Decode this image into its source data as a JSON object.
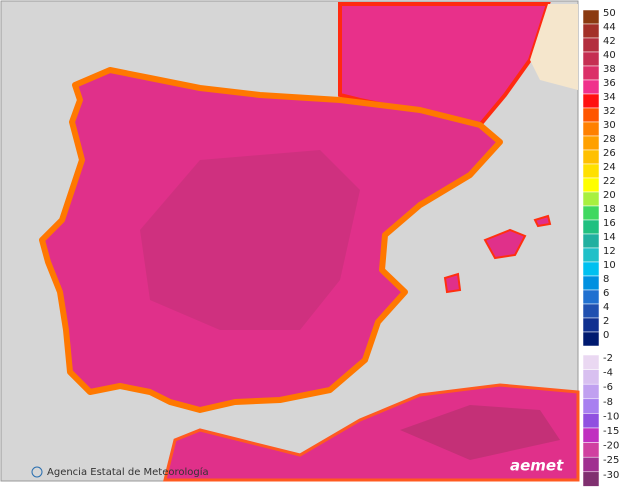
{
  "credit": "Agencia Estatal de Meteorología",
  "logo": "aemet",
  "legend": {
    "positive": [
      {
        "label": 50,
        "color": "#8b3a10"
      },
      {
        "label": 44,
        "color": "#a33028"
      },
      {
        "label": 42,
        "color": "#b32e3e"
      },
      {
        "label": 40,
        "color": "#c52f52"
      },
      {
        "label": 38,
        "color": "#db2f68"
      },
      {
        "label": 36,
        "color": "#f0308c"
      },
      {
        "label": 34,
        "color": "#ff1010"
      },
      {
        "label": 32,
        "color": "#ff5500"
      },
      {
        "label": 30,
        "color": "#ff8000"
      },
      {
        "label": 28,
        "color": "#ffa000"
      },
      {
        "label": 26,
        "color": "#ffc000"
      },
      {
        "label": 24,
        "color": "#ffe000"
      },
      {
        "label": 22,
        "color": "#ffff00"
      },
      {
        "label": 20,
        "color": "#a8f040"
      },
      {
        "label": 18,
        "color": "#40d860"
      },
      {
        "label": 16,
        "color": "#20c080"
      },
      {
        "label": 14,
        "color": "#20b0a0"
      },
      {
        "label": 12,
        "color": "#20c0c8"
      },
      {
        "label": 10,
        "color": "#00c0f0"
      },
      {
        "label": 8,
        "color": "#0090e0"
      },
      {
        "label": 6,
        "color": "#2070d0"
      },
      {
        "label": 4,
        "color": "#2050b0"
      },
      {
        "label": 2,
        "color": "#103090"
      },
      {
        "label": 0,
        "color": "#001a70"
      }
    ],
    "negative": [
      {
        "label": -2,
        "color": "#ead8f2"
      },
      {
        "label": -4,
        "color": "#d8c0f0"
      },
      {
        "label": -6,
        "color": "#c0a0f0"
      },
      {
        "label": -8,
        "color": "#a880f0"
      },
      {
        "label": -10,
        "color": "#9050e0"
      },
      {
        "label": -15,
        "color": "#c030c0"
      },
      {
        "label": -20,
        "color": "#d040a0"
      },
      {
        "label": -25,
        "color": "#a03090"
      },
      {
        "label": -30,
        "color": "#803070"
      }
    ]
  }
}
